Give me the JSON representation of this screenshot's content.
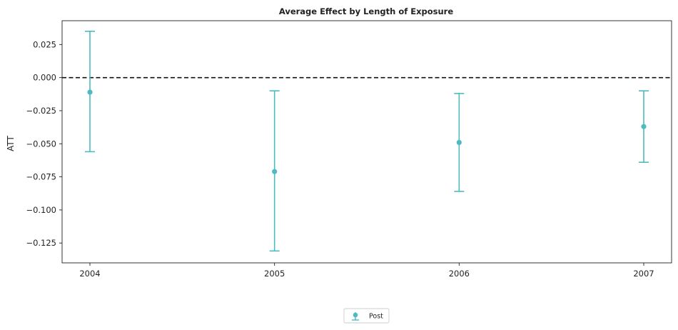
{
  "chart_data": {
    "type": "scatter",
    "title": "Average Effect by Length of Exposure",
    "xlabel": "",
    "ylabel": "ATT",
    "categories": [
      "2004",
      "2005",
      "2006",
      "2007"
    ],
    "ylim": [
      -0.14,
      0.043
    ],
    "yticks": [
      "0.025",
      "0.000",
      "−0.025",
      "−0.050",
      "−0.075",
      "−0.100",
      "−0.125"
    ],
    "ytick_values": [
      0.025,
      0.0,
      -0.025,
      -0.05,
      -0.075,
      -0.1,
      -0.125
    ],
    "reference_line": 0.0,
    "grid": false,
    "legend_position": "bottom-center",
    "series": [
      {
        "name": "Post",
        "color": "#4dbbc0",
        "values": [
          -0.011,
          -0.071,
          -0.049,
          -0.037
        ],
        "lower": [
          -0.056,
          -0.131,
          -0.086,
          -0.064
        ],
        "upper": [
          0.035,
          -0.01,
          -0.012,
          -0.01
        ]
      }
    ]
  }
}
